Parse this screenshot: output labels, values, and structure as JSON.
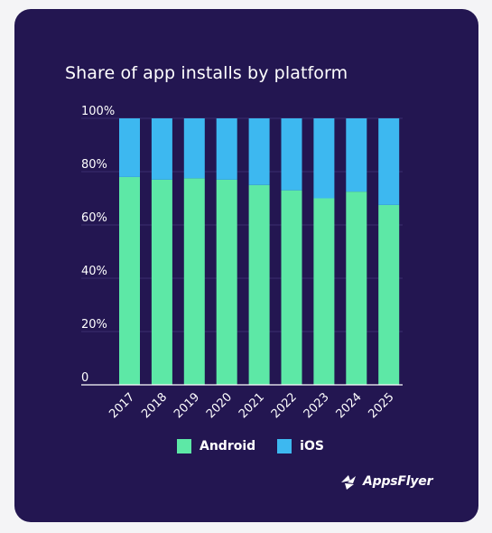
{
  "chart_data": {
    "type": "bar",
    "stacked": true,
    "title": "Share of app installs by platform",
    "categories": [
      "2017",
      "2018",
      "2019",
      "2020",
      "2021",
      "2022",
      "2023",
      "2024",
      "2025"
    ],
    "series": [
      {
        "name": "Android",
        "color": "#5de8a6",
        "values": [
          78,
          77,
          77.5,
          77,
          75,
          73,
          70,
          72.5,
          67.5
        ]
      },
      {
        "name": "iOS",
        "color": "#3db8f0",
        "values": [
          22,
          23,
          22.5,
          23,
          25,
          27,
          30,
          27.5,
          32.5
        ]
      }
    ],
    "yticks": [
      "0",
      "20%",
      "40%",
      "60%",
      "80%",
      "100%"
    ],
    "ylim": [
      0,
      100
    ],
    "grid": true,
    "legend": "bottom",
    "background": "#231651"
  },
  "brand": {
    "name": "AppsFlyer",
    "logo_icon": "appsflyer-bird-icon"
  }
}
